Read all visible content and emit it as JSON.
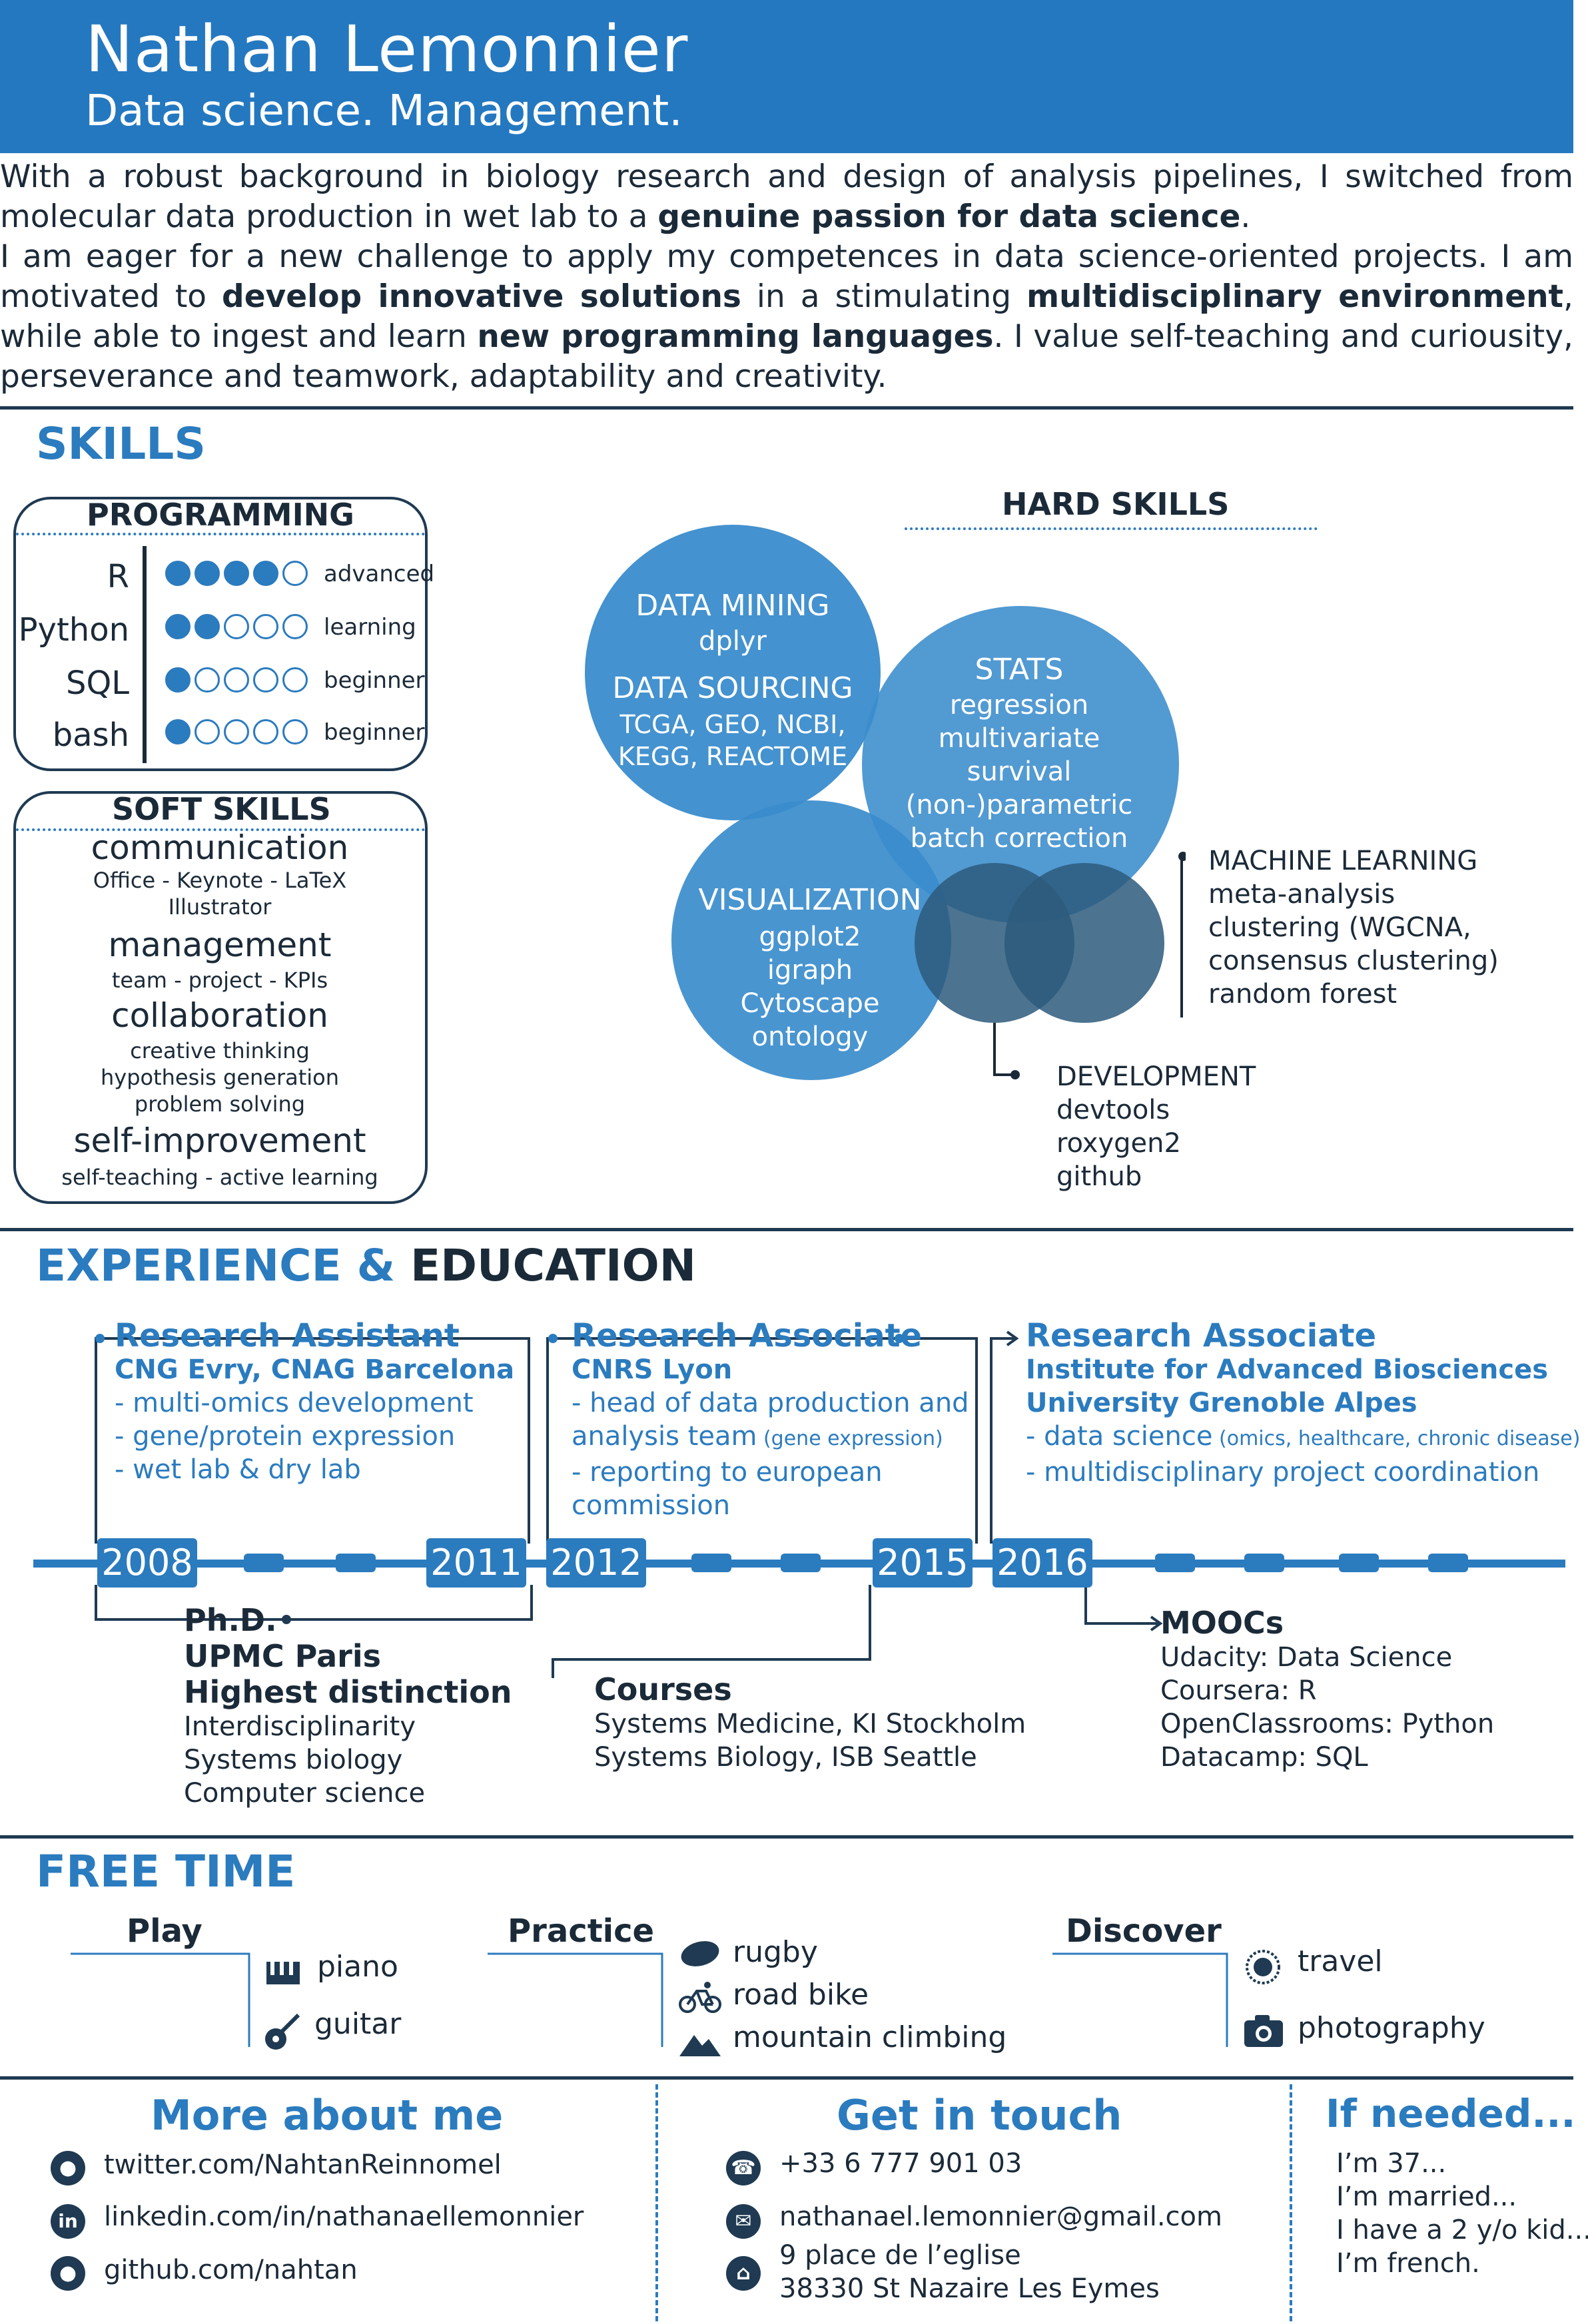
{
  "header": {
    "name": "Nathan Lemonnier",
    "subtitle": "Data science. Management."
  },
  "intro": {
    "p1_a": "With a robust background in biology research and design of analysis pipelines, I switched from molecular data production in wet lab to a ",
    "p1_b": "genuine passion for data science",
    "p1_c": ".",
    "p2_a": "I am eager for a new challenge to apply my competences in data science-oriented projects. I am motivated to ",
    "p2_b": "develop innovative solutions",
    "p2_c": " in a stimulating ",
    "p2_d": "multidisciplinary environment",
    "p2_e": ", while able to ingest and learn ",
    "p2_f": "new programming languages",
    "p2_g": ". I value self-teaching and curiousity, perseverance and teamwork, adaptability and creativity."
  },
  "skills": {
    "title": "SKILLS",
    "programming": {
      "title": "PROGRAMMING",
      "items": [
        {
          "name": "R",
          "level": "advanced",
          "score": 4
        },
        {
          "name": "Python",
          "level": "learning",
          "score": 2
        },
        {
          "name": "SQL",
          "level": "beginner",
          "score": 1
        },
        {
          "name": "bash",
          "level": "beginner",
          "score": 1
        }
      ]
    },
    "soft": {
      "title": "SOFT SKILLS",
      "communication": "communication",
      "communication_sub1": "Office - Keynote - LaTeX",
      "communication_sub2": "Illustrator",
      "management": "management",
      "management_sub": "team - project - KPIs",
      "collaboration": "collaboration",
      "collab_sub1": "creative thinking",
      "collab_sub2": "hypothesis generation",
      "collab_sub3": "problem solving",
      "improvement": "self-improvement",
      "improvement_sub": "self-teaching - active learning"
    },
    "hard": {
      "title": "HARD SKILLS",
      "mining_h": "DATA MINING",
      "mining_1": "dplyr",
      "sourcing_h": "DATA SOURCING",
      "sourcing_1": "TCGA, GEO, NCBI,",
      "sourcing_2": "KEGG, REACTOME",
      "stats_h": "STATS",
      "stats_1": "regression",
      "stats_2": "multivariate",
      "stats_3": "survival",
      "stats_4": "(non-)parametric",
      "stats_5": "batch correction",
      "viz_h": "VISUALIZATION",
      "viz_1": "ggplot2",
      "viz_2": "igraph",
      "viz_3": "Cytoscape",
      "viz_4": "ontology",
      "ml_h": "MACHINE LEARNING",
      "ml_1": "meta-analysis",
      "ml_2": "clustering (WGCNA,",
      "ml_3": "consensus clustering)",
      "ml_4": "random forest",
      "dev_h": "DEVELOPMENT",
      "dev_1": "devtools",
      "dev_2": "roxygen2",
      "dev_3": "github"
    }
  },
  "experience": {
    "title_a": "EXPERIENCE &",
    "title_b": " EDUCATION",
    "jobs": [
      {
        "title": "Research Assistant",
        "org1": "CNG Evry, CNAG Barcelona",
        "b1": "- multi-omics development",
        "b2": "- gene/protein expression",
        "b3": "- wet lab & dry lab"
      },
      {
        "title": "Research Associate",
        "org1": "CNRS Lyon",
        "b1": "- head of data production and",
        "b2": "analysis team",
        "b2_small": " (gene expression)",
        "b3": "- reporting to european",
        "b4": "commission"
      },
      {
        "title": "Research Associate",
        "org1": "Institute for Advanced Biosciences",
        "org2": "University Grenoble Alpes",
        "b1": "- data science",
        "b1_small": " (omics, healthcare, chronic disease)",
        "b2": "- multidisciplinary project coordination"
      }
    ],
    "years": [
      "2008",
      "2011",
      "2012",
      "2015",
      "2016"
    ],
    "phd": {
      "h1": "Ph.D.",
      "h2": "UPMC Paris",
      "h3": "Highest distinction",
      "l1": "Interdisciplinarity",
      "l2": "Systems biology",
      "l3": "Computer science"
    },
    "courses": {
      "h": "Courses",
      "l1": "Systems Medicine, KI Stockholm",
      "l2": "Systems Biology, ISB Seattle"
    },
    "moocs": {
      "h": "MOOCs",
      "l1": "Udacity: Data Science",
      "l2": "Coursera: R",
      "l3": "OpenClassrooms: Python",
      "l4": "Datacamp: SQL"
    }
  },
  "free_time": {
    "title": "FREE TIME",
    "play": {
      "h": "Play",
      "i1": "piano",
      "i2": "guitar"
    },
    "practice": {
      "h": "Practice",
      "i1": "rugby",
      "i2": "road bike",
      "i3": "mountain climbing"
    },
    "discover": {
      "h": "Discover",
      "i1": "travel",
      "i2": "photography"
    }
  },
  "footer": {
    "more_h": "More about me",
    "twitter": "twitter.com/NahtanReinnomel",
    "linkedin": "linkedin.com/in/nathanaellemonnier",
    "github": "github.com/nahtan",
    "touch_h": "Get in touch",
    "phone": "+33 6 777 901 03",
    "email": "nathanael.lemonnier@gmail.com",
    "addr1": "9 place de l’eglise",
    "addr2": "38330 St Nazaire Les Eymes",
    "needed_h": "If needed...",
    "n1": "I’m 37...",
    "n2": "I’m married...",
    "n3": "I have a 2 y/o kid...",
    "n4": "I’m french."
  },
  "colors": {
    "primary": "#2478c0",
    "dark": "#1f3a52",
    "circle": "#3a8ccc",
    "circle_dark": "#2d5a7d"
  }
}
